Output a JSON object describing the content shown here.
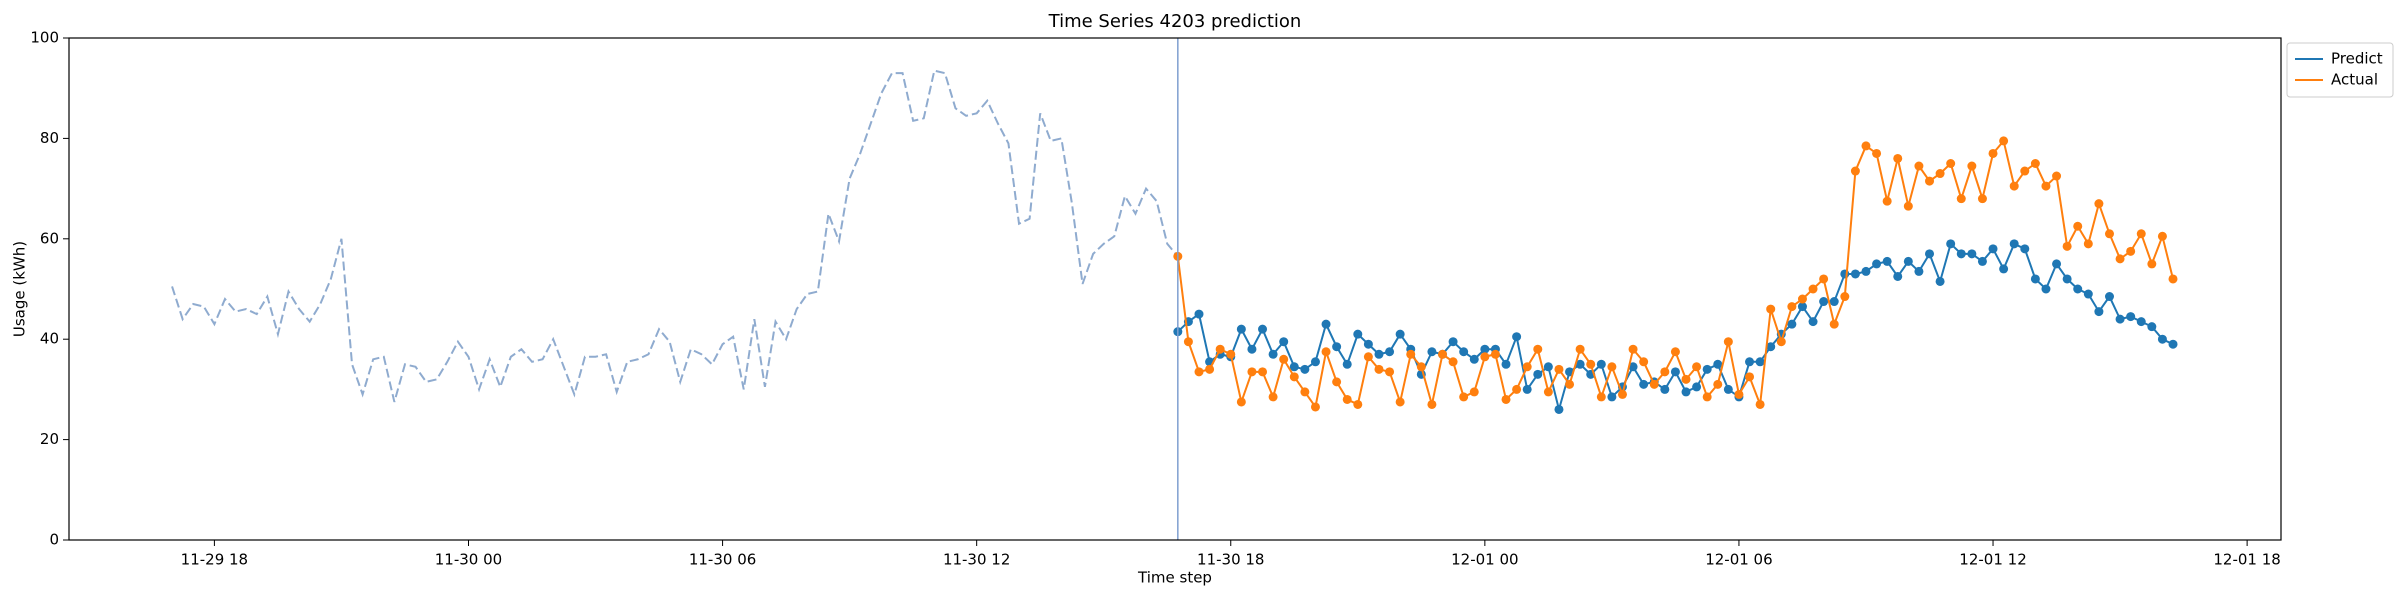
{
  "chart_data": {
    "type": "line",
    "title": "Time Series 4203 prediction",
    "x_label": "Time step",
    "y_label": "Usage (kWh)",
    "x": [
      "11-29 17:00",
      "11-29 17:15",
      "11-29 17:30",
      "11-29 17:45",
      "11-29 18:00",
      "11-29 18:15",
      "11-29 18:30",
      "11-29 18:45",
      "11-29 19:00",
      "11-29 19:15",
      "11-29 19:30",
      "11-29 19:45",
      "11-29 20:00",
      "11-29 20:15",
      "11-29 20:30",
      "11-29 20:45",
      "11-29 21:00",
      "11-29 21:15",
      "11-29 21:30",
      "11-29 21:45",
      "11-29 22:00",
      "11-29 22:15",
      "11-29 22:30",
      "11-29 22:45",
      "11-29 23:00",
      "11-29 23:15",
      "11-29 23:30",
      "11-29 23:45",
      "11-30 00:00",
      "11-30 00:15",
      "11-30 00:30",
      "11-30 00:45",
      "11-30 01:00",
      "11-30 01:15",
      "11-30 01:30",
      "11-30 01:45",
      "11-30 02:00",
      "11-30 02:15",
      "11-30 02:30",
      "11-30 02:45",
      "11-30 03:00",
      "11-30 03:15",
      "11-30 03:30",
      "11-30 03:45",
      "11-30 04:00",
      "11-30 04:15",
      "11-30 04:30",
      "11-30 04:45",
      "11-30 05:00",
      "11-30 05:15",
      "11-30 05:30",
      "11-30 05:45",
      "11-30 06:00",
      "11-30 06:15",
      "11-30 06:30",
      "11-30 06:45",
      "11-30 07:00",
      "11-30 07:15",
      "11-30 07:30",
      "11-30 07:45",
      "11-30 08:00",
      "11-30 08:15",
      "11-30 08:30",
      "11-30 08:45",
      "11-30 09:00",
      "11-30 09:15",
      "11-30 09:30",
      "11-30 09:45",
      "11-30 10:00",
      "11-30 10:15",
      "11-30 10:30",
      "11-30 10:45",
      "11-30 11:00",
      "11-30 11:15",
      "11-30 11:30",
      "11-30 11:45",
      "11-30 12:00",
      "11-30 12:15",
      "11-30 12:30",
      "11-30 12:45",
      "11-30 13:00",
      "11-30 13:15",
      "11-30 13:30",
      "11-30 13:45",
      "11-30 14:00",
      "11-30 14:15",
      "11-30 14:30",
      "11-30 14:45",
      "11-30 15:00",
      "11-30 15:15",
      "11-30 15:30",
      "11-30 15:45",
      "11-30 16:00",
      "11-30 16:15",
      "11-30 16:30",
      "11-30 16:45",
      "11-30 17:00",
      "11-30 17:15",
      "11-30 17:30",
      "11-30 17:45",
      "11-30 18:00",
      "11-30 18:15",
      "11-30 18:30",
      "11-30 18:45",
      "11-30 19:00",
      "11-30 19:15",
      "11-30 19:30",
      "11-30 19:45",
      "11-30 20:00",
      "11-30 20:15",
      "11-30 20:30",
      "11-30 20:45",
      "11-30 21:00",
      "11-30 21:15",
      "11-30 21:30",
      "11-30 21:45",
      "11-30 22:00",
      "11-30 22:15",
      "11-30 22:30",
      "11-30 22:45",
      "11-30 23:00",
      "11-30 23:15",
      "11-30 23:30",
      "11-30 23:45",
      "12-01 00:00",
      "12-01 00:15",
      "12-01 00:30",
      "12-01 00:45",
      "12-01 01:00",
      "12-01 01:15",
      "12-01 01:30",
      "12-01 01:45",
      "12-01 02:00",
      "12-01 02:15",
      "12-01 02:30",
      "12-01 02:45",
      "12-01 03:00",
      "12-01 03:15",
      "12-01 03:30",
      "12-01 03:45",
      "12-01 04:00",
      "12-01 04:15",
      "12-01 04:30",
      "12-01 04:45",
      "12-01 05:00",
      "12-01 05:15",
      "12-01 05:30",
      "12-01 05:45",
      "12-01 06:00",
      "12-01 06:15",
      "12-01 06:30",
      "12-01 06:45",
      "12-01 07:00",
      "12-01 07:15",
      "12-01 07:30",
      "12-01 07:45",
      "12-01 08:00",
      "12-01 08:15",
      "12-01 08:30",
      "12-01 08:45",
      "12-01 09:00",
      "12-01 09:15",
      "12-01 09:30",
      "12-01 09:45",
      "12-01 10:00",
      "12-01 10:15",
      "12-01 10:30",
      "12-01 10:45",
      "12-01 11:00",
      "12-01 11:15",
      "12-01 11:30",
      "12-01 11:45",
      "12-01 12:00",
      "12-01 12:15",
      "12-01 12:30",
      "12-01 12:45",
      "12-01 13:00",
      "12-01 13:15",
      "12-01 13:30",
      "12-01 13:45",
      "12-01 14:00",
      "12-01 14:15",
      "12-01 14:30",
      "12-01 14:45",
      "12-01 15:00",
      "12-01 15:15",
      "12-01 15:30",
      "12-01 15:45",
      "12-01 16:00",
      "12-01 16:15"
    ],
    "series": [
      {
        "color": "#8fabcf",
        "dashed": true,
        "markers": false,
        "values": [
          50.5,
          44,
          47,
          46.5,
          43,
          48,
          45.5,
          46,
          45,
          48.5,
          41,
          49.5,
          46,
          43.5,
          47,
          52,
          60,
          35,
          29,
          36,
          36.5,
          27.5,
          35,
          34.5,
          31.5,
          32,
          35.5,
          39.5,
          36.5,
          30,
          36,
          30.5,
          36.5,
          38,
          35.5,
          36,
          40,
          34.5,
          29,
          36.5,
          36.5,
          37,
          29.5,
          35.5,
          36,
          37,
          42,
          39.5,
          31.5,
          38,
          37,
          35,
          39,
          40.5,
          30,
          44,
          30.5,
          43.5,
          40,
          46,
          49,
          49.5,
          65,
          59.5,
          72,
          77,
          83,
          89,
          93,
          93,
          83.5,
          84,
          93.5,
          93,
          86,
          84.5,
          85,
          87.5,
          83,
          79,
          63,
          64,
          85,
          79.5,
          80,
          67,
          51,
          57,
          59,
          60.5,
          68.5,
          65,
          70,
          67.5,
          59,
          56.5,
          null,
          null,
          null,
          null,
          null,
          null,
          null,
          null,
          null,
          null,
          null,
          null,
          null,
          null,
          null,
          null,
          null,
          null,
          null,
          null,
          null,
          null,
          null,
          null,
          null,
          null,
          null,
          null,
          null,
          null,
          null,
          null,
          null,
          null,
          null,
          null,
          null,
          null,
          null,
          null,
          null,
          null,
          null,
          null,
          null,
          null,
          null,
          null,
          null,
          null,
          null,
          null,
          null,
          null,
          null,
          null,
          null,
          null,
          null,
          null,
          null,
          null,
          null,
          null,
          null,
          null,
          null,
          null,
          null,
          null,
          null,
          null,
          null,
          null,
          null,
          null,
          null,
          null,
          null,
          null,
          null,
          null,
          null,
          null,
          null,
          null,
          null,
          null,
          null,
          null,
          null,
          null,
          null,
          null
        ]
      },
      {
        "name": "Predict",
        "color": "#1f77b4",
        "dashed": false,
        "markers": true,
        "values": [
          null,
          null,
          null,
          null,
          null,
          null,
          null,
          null,
          null,
          null,
          null,
          null,
          null,
          null,
          null,
          null,
          null,
          null,
          null,
          null,
          null,
          null,
          null,
          null,
          null,
          null,
          null,
          null,
          null,
          null,
          null,
          null,
          null,
          null,
          null,
          null,
          null,
          null,
          null,
          null,
          null,
          null,
          null,
          null,
          null,
          null,
          null,
          null,
          null,
          null,
          null,
          null,
          null,
          null,
          null,
          null,
          null,
          null,
          null,
          null,
          null,
          null,
          null,
          null,
          null,
          null,
          null,
          null,
          null,
          null,
          null,
          null,
          null,
          null,
          null,
          null,
          null,
          null,
          null,
          null,
          null,
          null,
          null,
          null,
          null,
          null,
          null,
          null,
          null,
          null,
          null,
          null,
          null,
          null,
          null,
          41.5,
          43.5,
          45,
          35.5,
          37,
          36.5,
          42,
          38,
          42,
          37,
          39.5,
          34.5,
          34,
          35.5,
          43,
          38.5,
          35,
          41,
          39,
          37,
          37.5,
          41,
          38,
          33,
          37.5,
          37,
          39.5,
          37.5,
          36,
          38,
          38,
          35,
          40.5,
          30,
          33,
          34.5,
          26,
          33.5,
          35,
          33,
          35,
          28.5,
          30.5,
          34.5,
          31,
          31.5,
          30,
          33.5,
          29.5,
          30.5,
          34,
          35,
          30,
          28.5,
          35.5,
          35.5,
          38.5,
          41,
          43,
          46.5,
          43.5,
          47.5,
          47.5,
          53,
          53,
          53.5,
          55,
          55.5,
          52.5,
          55.5,
          53.5,
          57,
          51.5,
          59,
          57,
          57,
          55.5,
          58,
          54,
          59,
          58,
          52,
          50,
          55,
          52,
          50,
          49,
          45.5,
          48.5,
          44,
          44.5,
          43.5,
          42.5,
          40,
          39
        ]
      },
      {
        "name": "Actual",
        "color": "#ff7f0e",
        "dashed": false,
        "markers": true,
        "values": [
          null,
          null,
          null,
          null,
          null,
          null,
          null,
          null,
          null,
          null,
          null,
          null,
          null,
          null,
          null,
          null,
          null,
          null,
          null,
          null,
          null,
          null,
          null,
          null,
          null,
          null,
          null,
          null,
          null,
          null,
          null,
          null,
          null,
          null,
          null,
          null,
          null,
          null,
          null,
          null,
          null,
          null,
          null,
          null,
          null,
          null,
          null,
          null,
          null,
          null,
          null,
          null,
          null,
          null,
          null,
          null,
          null,
          null,
          null,
          null,
          null,
          null,
          null,
          null,
          null,
          null,
          null,
          null,
          null,
          null,
          null,
          null,
          null,
          null,
          null,
          null,
          null,
          null,
          null,
          null,
          null,
          null,
          null,
          null,
          null,
          null,
          null,
          null,
          null,
          null,
          null,
          null,
          null,
          null,
          null,
          56.5,
          39.5,
          33.5,
          34,
          38,
          37,
          27.5,
          33.5,
          33.5,
          28.5,
          36,
          32.5,
          29.5,
          26.5,
          37.5,
          31.5,
          28,
          27,
          36.5,
          34,
          33.5,
          27.5,
          37,
          34.5,
          27,
          37,
          35.5,
          28.5,
          29.5,
          36.5,
          37,
          28,
          30,
          34.5,
          38,
          29.5,
          34,
          31,
          38,
          35,
          28.5,
          34.5,
          29,
          38,
          35.5,
          31,
          33.5,
          37.5,
          32,
          34.5,
          28.5,
          31,
          39.5,
          29,
          32.5,
          27,
          46,
          39.5,
          46.5,
          48,
          50,
          52,
          43,
          48.5,
          73.5,
          78.5,
          77,
          67.5,
          76,
          66.5,
          74.5,
          71.5,
          73,
          75,
          68,
          74.5,
          68,
          77,
          79.5,
          70.5,
          73.5,
          75,
          70.5,
          72.5,
          58.5,
          62.5,
          59,
          67,
          61,
          56,
          57.5,
          61,
          55,
          60.5,
          52
        ]
      }
    ],
    "vline": {
      "x": "11-30 16:45",
      "color": "#7f9fd0"
    },
    "xlim": [
      "11-29 14:34",
      "12-01 18:48"
    ],
    "xticks": [
      "11-29 18",
      "11-30 00",
      "11-30 06",
      "11-30 12",
      "11-30 18",
      "12-01 00",
      "12-01 06",
      "12-01 12",
      "12-01 18"
    ],
    "ylim": [
      0,
      100
    ],
    "yticks": [
      0,
      20,
      40,
      60,
      80,
      100
    ],
    "grid": false,
    "legend": "outside-upper-right"
  }
}
